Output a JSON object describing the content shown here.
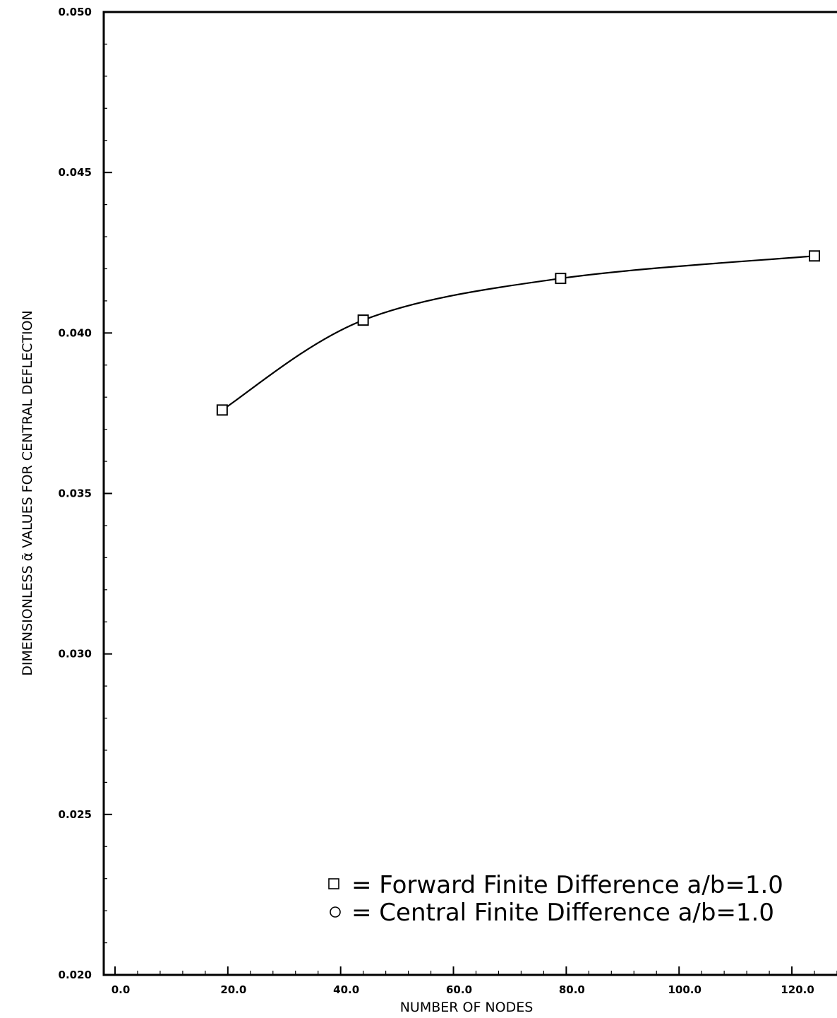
{
  "chart_data": {
    "type": "line",
    "title": "",
    "xlabel": "NUMBER OF NODES",
    "ylabel": "DIMENSIONLESS ᾱ VALUES FOR CENTRAL DEFLECTION",
    "xlim": [
      -2,
      128
    ],
    "ylim": [
      0.02,
      0.05
    ],
    "x_ticks": [
      0,
      20,
      40,
      60,
      80,
      100,
      120
    ],
    "x_tick_labels": [
      "0.0",
      "20.0",
      "40.0",
      "60.0",
      "80.0",
      "100.0",
      "120.0"
    ],
    "y_ticks": [
      0.02,
      0.025,
      0.03,
      0.035,
      0.04,
      0.045,
      0.05
    ],
    "y_tick_labels": [
      "0.020",
      "0.025",
      "0.030",
      "0.035",
      "0.040",
      "0.045",
      "0.050"
    ],
    "grid": false,
    "legend_position": "bottom-right",
    "series": [
      {
        "name": "= Forward Finite Difference a/b=1.0",
        "marker": "square",
        "x": [
          19,
          44,
          79,
          124
        ],
        "y": [
          0.0376,
          0.0404,
          0.0417,
          0.0424
        ]
      }
    ],
    "legend": [
      {
        "symbol": "□",
        "label": "= Forward Finite Difference a/b=1.0"
      },
      {
        "symbol": "○",
        "label": "= Central Finite Difference a/b=1.0"
      }
    ]
  }
}
